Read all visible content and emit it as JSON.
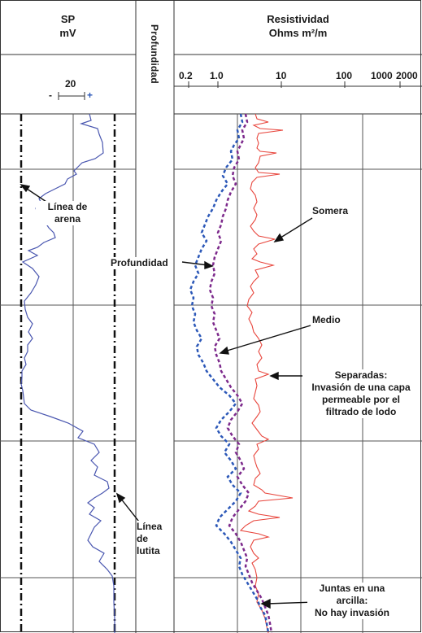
{
  "tracks": {
    "sp": {
      "title": "SP",
      "unit": "mV",
      "scale_value": "20",
      "minus": "-",
      "plus": "+"
    },
    "depth": {
      "label": "Profundidad"
    },
    "res": {
      "title": "Resistividad",
      "unit": "Ohms m²/m",
      "ticks": [
        "0.2",
        "1.0",
        "10",
        "100",
        "1000",
        "2000"
      ]
    }
  },
  "annotations": {
    "sand_line": [
      "Línea de",
      "arena"
    ],
    "shale_line": [
      "Línea de",
      "lutita"
    ],
    "deep": "Profundidad",
    "shallow": "Somera",
    "medium": "Medio",
    "separated": [
      "Separadas:",
      "Invasión de una capa",
      "permeable por el",
      "filtrado de lodo"
    ],
    "together": [
      "Juntas en una",
      "arcilla:",
      "No hay invasión"
    ]
  },
  "colors": {
    "sp_curve": "#4a57b0",
    "shallow_curve": "#e8453c",
    "medium_curve": "#7d2a8c",
    "deep_curve": "#2c58b8",
    "baseline": "#111111"
  }
}
